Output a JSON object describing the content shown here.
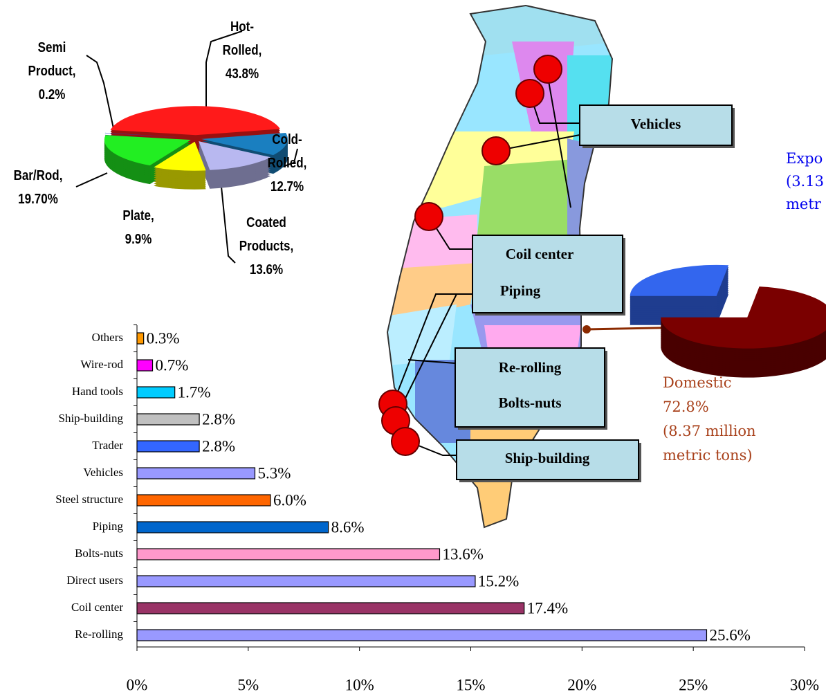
{
  "chart_data": [
    {
      "type": "pie3d",
      "categories": [
        "Hot-Rolled,",
        "Cold-Rolled,",
        "Coated Products,",
        "Plate,",
        "Bar/Rod,",
        "Semi Product,"
      ],
      "values": [
        43.8,
        12.7,
        13.6,
        9.9,
        19.7,
        0.2
      ],
      "value_labels": [
        "43.8%",
        "12.7%",
        "13.6%",
        "9.9%",
        "19.70%",
        "0.2%"
      ],
      "colors": [
        "#ff1a1a",
        "#1a7fc0",
        "#b8b8f0",
        "#ffff00",
        "#22ee22",
        "#2244bb"
      ]
    },
    {
      "type": "hbar",
      "categories": [
        "Others",
        "Wire-rod",
        "Hand tools",
        "Ship-building",
        "Trader",
        "Vehicles",
        "Steel structure",
        "Piping",
        "Bolts-nuts",
        "Direct users",
        "Coil center",
        "Re-rolling"
      ],
      "values": [
        0.3,
        0.7,
        1.7,
        2.8,
        2.8,
        5.3,
        6.0,
        8.6,
        13.6,
        15.2,
        17.4,
        25.6
      ],
      "value_labels": [
        "0.3%",
        "0.7%",
        "1.7%",
        "2.8%",
        "2.8%",
        "5.3%",
        "6.0%",
        "8.6%",
        "13.6%",
        "15.2%",
        "17.4%",
        "25.6%"
      ],
      "colors": [
        "#ff9900",
        "#ff00ff",
        "#00ccff",
        "#c0c0c0",
        "#3366ff",
        "#9999ff",
        "#ff6600",
        "#0066cc",
        "#ff99cc",
        "#9999ff",
        "#993366",
        "#9999ff"
      ],
      "xlim": [
        0,
        30
      ],
      "xticks": [
        {
          "value": 0,
          "label": "0%"
        },
        {
          "value": 5,
          "label": "5%"
        },
        {
          "value": 10,
          "label": "10%"
        },
        {
          "value": 15,
          "label": "15%"
        },
        {
          "value": 20,
          "label": "20%"
        },
        {
          "value": 25,
          "label": "25%"
        },
        {
          "value": 30,
          "label": "30%"
        }
      ]
    },
    {
      "type": "pie3d",
      "categories": [
        "Domestic",
        "Expo"
      ],
      "values": [
        72.8,
        27.2
      ],
      "value_labels": [
        "72.8%",
        null
      ],
      "annotations": [
        [
          "(8.37 million",
          "metric tons)"
        ],
        [
          "(3.13",
          "metr"
        ]
      ],
      "colors": [
        "#7a0000",
        "#3366ee"
      ]
    }
  ],
  "map": {
    "labels": [
      "Vehicles",
      "Coil center",
      "Piping",
      "Re-rolling",
      "Bolts-nuts",
      "Ship-building"
    ]
  }
}
